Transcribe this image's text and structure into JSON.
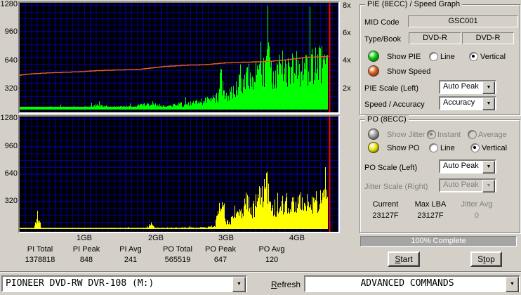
{
  "colors": {
    "window_bg": "#d4d0c8",
    "plot_bg": "#000000",
    "grid_minor": "#00008c",
    "grid_major": "#0000d8",
    "pie_bar": "#00ff00",
    "po_bar": "#ffff00",
    "speed_line": "#e8601c",
    "scan_marker": "#ff0000",
    "led_green": "#00cc00",
    "led_orange": "#e05a10",
    "led_yellow": "#e8e800",
    "led_gray": "#9a9a9a",
    "progress_fill": "#a5a5a5"
  },
  "graphs": {
    "left_ticks": [
      "1280",
      "960",
      "640",
      "320"
    ],
    "right_ticks": [
      "8x",
      "6x",
      "4x",
      "2x"
    ],
    "x_ticks": [
      "1GB",
      "2GB",
      "3GB",
      "4GB"
    ]
  },
  "chart_data": [
    {
      "type": "bar",
      "title": "PIE (8ECC) / Speed Graph",
      "ylabel_left_ticks": [
        1280,
        960,
        640,
        320
      ],
      "ylim": [
        0,
        1280
      ],
      "right_axis_ticks_x": [
        8,
        6,
        4,
        2
      ],
      "x_unit": "GB",
      "x_tick_values_gb": [
        1,
        2,
        3,
        4
      ],
      "scan_end_gb": 4.47,
      "bar_series_name": "PIE errors (8ECC), estimated envelope [GB, errors]",
      "envelope_points": [
        [
          0.08,
          22
        ],
        [
          0.3,
          24
        ],
        [
          0.6,
          26
        ],
        [
          1.0,
          28
        ],
        [
          1.2,
          55
        ],
        [
          1.4,
          32
        ],
        [
          1.7,
          36
        ],
        [
          1.95,
          80
        ],
        [
          2.1,
          45
        ],
        [
          2.3,
          60
        ],
        [
          2.5,
          80
        ],
        [
          2.65,
          105
        ],
        [
          2.8,
          135
        ],
        [
          2.9,
          165
        ],
        [
          2.93,
          450
        ],
        [
          2.97,
          210
        ],
        [
          3.02,
          175
        ],
        [
          3.1,
          235
        ],
        [
          3.15,
          305
        ],
        [
          3.2,
          430
        ],
        [
          3.25,
          335
        ],
        [
          3.3,
          465
        ],
        [
          3.35,
          420
        ],
        [
          3.4,
          385
        ],
        [
          3.45,
          520
        ],
        [
          3.5,
          465
        ],
        [
          3.55,
          505
        ],
        [
          3.6,
          848
        ],
        [
          3.64,
          520
        ],
        [
          3.7,
          480
        ],
        [
          3.75,
          545
        ],
        [
          3.8,
          560
        ],
        [
          3.85,
          525
        ],
        [
          3.9,
          560
        ],
        [
          3.95,
          545
        ],
        [
          4.0,
          580
        ],
        [
          4.05,
          560
        ],
        [
          4.1,
          545
        ],
        [
          4.15,
          580
        ],
        [
          4.2,
          560
        ],
        [
          4.25,
          590
        ],
        [
          4.3,
          600
        ],
        [
          4.35,
          580
        ],
        [
          4.4,
          620
        ],
        [
          4.45,
          650
        ],
        [
          4.5,
          760
        ],
        [
          4.53,
          820
        ]
      ],
      "line_series_name": "Write speed (x), stepped",
      "speed_points": [
        [
          0.08,
          2.62
        ],
        [
          0.15,
          2.7
        ],
        [
          0.35,
          2.78
        ],
        [
          0.6,
          2.85
        ],
        [
          0.9,
          2.9
        ],
        [
          1.2,
          3.0
        ],
        [
          1.5,
          3.05
        ],
        [
          1.8,
          3.1
        ],
        [
          2.1,
          3.3
        ],
        [
          2.4,
          3.4
        ],
        [
          2.7,
          3.45
        ],
        [
          3.0,
          3.6
        ],
        [
          3.3,
          3.65
        ],
        [
          3.6,
          3.7
        ],
        [
          3.9,
          3.85
        ],
        [
          4.1,
          4.0
        ],
        [
          4.3,
          4.05
        ],
        [
          4.47,
          4.1
        ]
      ]
    },
    {
      "type": "bar",
      "title": "PO (8ECC)",
      "ylim": [
        0,
        1280
      ],
      "x_unit": "GB",
      "x_tick_values_gb": [
        1,
        2,
        3,
        4
      ],
      "scan_end_gb": 4.47,
      "bar_series_name": "PO errors (8ECC), estimated envelope [GB, errors]",
      "envelope_points": [
        [
          0.08,
          5
        ],
        [
          0.3,
          6
        ],
        [
          0.35,
          200
        ],
        [
          0.4,
          6
        ],
        [
          0.8,
          7
        ],
        [
          1.2,
          9
        ],
        [
          1.6,
          11
        ],
        [
          1.9,
          13
        ],
        [
          1.95,
          85
        ],
        [
          2.0,
          12
        ],
        [
          2.3,
          14
        ],
        [
          2.6,
          17
        ],
        [
          2.85,
          26
        ],
        [
          2.9,
          300
        ],
        [
          2.95,
          270
        ],
        [
          3.0,
          90
        ],
        [
          3.05,
          70
        ],
        [
          3.1,
          130
        ],
        [
          3.15,
          260
        ],
        [
          3.2,
          175
        ],
        [
          3.25,
          300
        ],
        [
          3.3,
          360
        ],
        [
          3.35,
          215
        ],
        [
          3.4,
          270
        ],
        [
          3.45,
          330
        ],
        [
          3.5,
          430
        ],
        [
          3.55,
          520
        ],
        [
          3.58,
          640
        ],
        [
          3.62,
          360
        ],
        [
          3.7,
          270
        ],
        [
          3.75,
          235
        ],
        [
          3.8,
          290
        ],
        [
          3.85,
          310
        ],
        [
          3.9,
          330
        ],
        [
          3.95,
          310
        ],
        [
          4.0,
          340
        ],
        [
          4.05,
          320
        ],
        [
          4.1,
          310
        ],
        [
          4.15,
          340
        ],
        [
          4.2,
          320
        ],
        [
          4.25,
          350
        ],
        [
          4.3,
          340
        ],
        [
          4.35,
          370
        ],
        [
          4.4,
          390
        ],
        [
          4.45,
          410
        ],
        [
          4.5,
          490
        ],
        [
          4.53,
          540
        ]
      ]
    }
  ],
  "pie_panel": {
    "title": "PIE (8ECC) / Speed Graph",
    "mid_code_label": "MID Code",
    "mid_code_value": "GSC001",
    "type_book_label": "Type/Book",
    "type_value": "DVD-R",
    "book_value": "DVD-R",
    "show_pie_label": "Show PIE",
    "line_label": "Line",
    "vertical_label": "Vertical",
    "show_speed_label": "Show Speed",
    "pie_scale_label": "PIE Scale (Left)",
    "pie_scale_value": "Auto Peak",
    "speed_accuracy_label": "Speed / Accuracy",
    "speed_accuracy_value": "Accuracy"
  },
  "po_panel": {
    "title": "PO (8ECC)",
    "show_jitter_label": "Show Jitter",
    "instant_label": "Instant",
    "average_label": "Average",
    "show_po_label": "Show PO",
    "line_label": "Line",
    "vertical_label": "Vertical",
    "po_scale_label": "PO Scale (Left)",
    "po_scale_value": "Auto Peak",
    "jitter_scale_label": "Jitter Scale (Right)",
    "jitter_scale_value": "Auto Peak",
    "current_label": "Current",
    "current_value": "23127F",
    "max_lba_label": "Max LBA",
    "max_lba_value": "23127F",
    "jitter_avg_label": "Jitter Avg",
    "jitter_avg_value": "0"
  },
  "progress": {
    "text": "100% Complete",
    "percent": 100
  },
  "buttons": {
    "start": "Start",
    "stop": "Stop"
  },
  "stats": [
    {
      "label": "PI Total",
      "value": "1378818"
    },
    {
      "label": "PI Peak",
      "value": "848"
    },
    {
      "label": "PI Avg",
      "value": "241"
    },
    {
      "label": "PO Total",
      "value": "565519"
    },
    {
      "label": "PO Peak",
      "value": "647"
    },
    {
      "label": "PO Avg",
      "value": "120"
    }
  ],
  "bottom_bar": {
    "drive": "PIONEER DVD-RW  DVR-108  (M:)",
    "refresh": "Refresh",
    "commands": "ADVANCED COMMANDS"
  }
}
